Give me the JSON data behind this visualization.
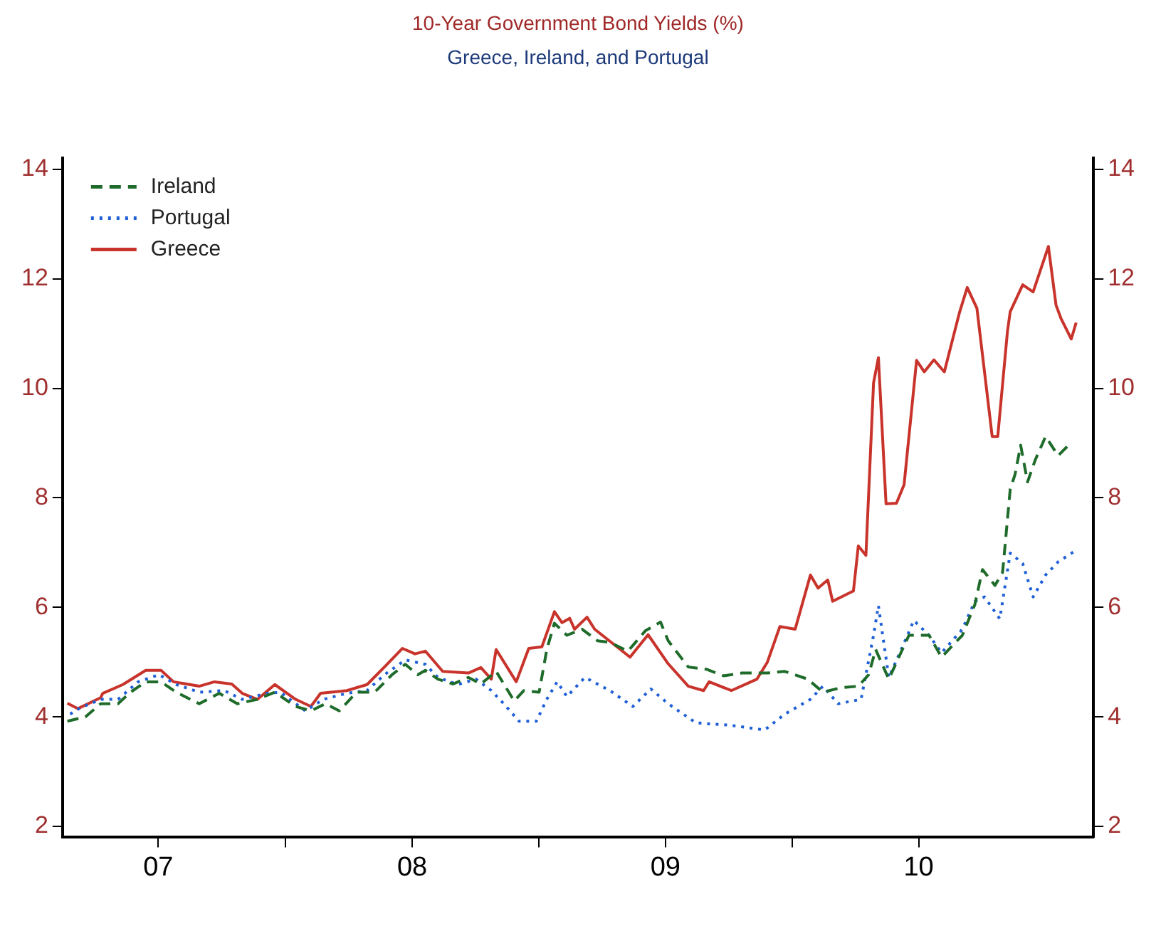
{
  "chart_data": {
    "type": "line",
    "title": "10-Year Government Bond Yields (%)",
    "subtitle": "Greece, Ireland, and Portugal",
    "xlim": [
      "2007-02-14",
      "2011-03-11"
    ],
    "xticks": [
      {
        "value": "2007-07-02",
        "label": "07"
      },
      {
        "value": "2008-01-01",
        "label": null
      },
      {
        "value": "2008-07-02",
        "label": "08"
      },
      {
        "value": "2009-01-01",
        "label": null
      },
      {
        "value": "2009-07-02",
        "label": "09"
      },
      {
        "value": "2010-01-01",
        "label": null
      },
      {
        "value": "2010-07-02",
        "label": "10"
      }
    ],
    "ylim": [
      1.8,
      14.2
    ],
    "yticks": [
      2,
      4,
      6,
      8,
      10,
      12,
      14
    ],
    "y2lim": [
      1.8,
      14.2
    ],
    "y2ticks": [
      2,
      4,
      6,
      8,
      10,
      12,
      14
    ],
    "grid": false,
    "legend": "top left",
    "marker": "none",
    "series": [
      {
        "name": "Ireland",
        "color": "#1e6b2a",
        "line_style": "dashed",
        "x": [
          "2007-02-21",
          "2007-03-19",
          "2007-04-10",
          "2007-05-05",
          "2007-05-23",
          "2007-06-14",
          "2007-07-06",
          "2007-07-28",
          "2007-08-30",
          "2007-09-28",
          "2007-10-24",
          "2007-11-22",
          "2007-12-17",
          "2008-01-16",
          "2008-02-07",
          "2008-02-28",
          "2008-03-19",
          "2008-04-13",
          "2008-05-09",
          "2008-06-03",
          "2008-06-22",
          "2008-07-10",
          "2008-07-21",
          "2008-08-08",
          "2008-08-30",
          "2008-09-21",
          "2008-10-09",
          "2008-10-31",
          "2008-11-26",
          "2008-12-10",
          "2009-01-01",
          "2009-01-12",
          "2009-01-23",
          "2009-02-10",
          "2009-03-04",
          "2009-03-26",
          "2009-04-13",
          "2009-05-09",
          "2009-06-03",
          "2009-06-25",
          "2009-07-06",
          "2009-08-04",
          "2009-08-30",
          "2009-09-24",
          "2009-10-20",
          "2009-11-26",
          "2009-12-21",
          "2010-01-23",
          "2010-02-14",
          "2010-03-11",
          "2010-04-06",
          "2010-04-21",
          "2010-05-01",
          "2010-05-09",
          "2010-05-20",
          "2010-06-18",
          "2010-07-17",
          "2010-08-04",
          "2010-09-03",
          "2010-09-21",
          "2010-10-02",
          "2010-10-20",
          "2010-10-31",
          "2010-11-11",
          "2010-11-18",
          "2010-11-26",
          "2010-12-06",
          "2010-12-17",
          "2011-01-01",
          "2011-01-19",
          "2011-02-03"
        ],
        "values": [
          3.92,
          4.0,
          4.24,
          4.24,
          4.45,
          4.64,
          4.64,
          4.45,
          4.24,
          4.43,
          4.24,
          4.32,
          4.45,
          4.19,
          4.11,
          4.24,
          4.11,
          4.45,
          4.45,
          4.77,
          4.96,
          4.77,
          4.85,
          4.69,
          4.6,
          4.72,
          4.6,
          4.83,
          4.29,
          4.48,
          4.45,
          5.23,
          5.71,
          5.49,
          5.6,
          5.39,
          5.36,
          5.2,
          5.57,
          5.73,
          5.39,
          4.91,
          4.87,
          4.75,
          4.8,
          4.8,
          4.83,
          4.69,
          4.45,
          4.53,
          4.56,
          4.77,
          5.23,
          5.0,
          4.69,
          5.49,
          5.49,
          5.09,
          5.49,
          6.05,
          6.69,
          6.4,
          6.64,
          8.16,
          8.43,
          8.96,
          8.29,
          8.69,
          9.12,
          8.77,
          8.96
        ]
      },
      {
        "name": "Portugal",
        "color": "#1f5fd6",
        "line_style": "dotted",
        "x": [
          "2007-02-25",
          "2007-03-11",
          "2007-04-10",
          "2007-05-05",
          "2007-06-03",
          "2007-07-03",
          "2007-07-28",
          "2007-08-30",
          "2007-10-05",
          "2007-10-31",
          "2007-12-06",
          "2007-12-25",
          "2008-01-30",
          "2008-02-25",
          "2008-03-30",
          "2008-04-28",
          "2008-05-23",
          "2008-06-22",
          "2008-07-21",
          "2008-08-08",
          "2008-09-06",
          "2008-10-02",
          "2008-10-24",
          "2008-11-11",
          "2008-12-03",
          "2008-12-28",
          "2009-01-12",
          "2009-01-27",
          "2009-02-10",
          "2009-03-08",
          "2009-04-13",
          "2009-05-16",
          "2009-06-11",
          "2009-07-06",
          "2009-08-15",
          "2009-10-02",
          "2009-11-22",
          "2009-12-21",
          "2010-01-27",
          "2010-02-14",
          "2010-03-08",
          "2010-04-10",
          "2010-04-28",
          "2010-05-05",
          "2010-05-20",
          "2010-06-07",
          "2010-06-25",
          "2010-07-17",
          "2010-08-04",
          "2010-09-03",
          "2010-09-21",
          "2010-10-05",
          "2010-10-27",
          "2010-11-11",
          "2010-11-29",
          "2010-12-14",
          "2011-01-01",
          "2011-01-19",
          "2011-02-10"
        ],
        "values": [
          4.05,
          4.16,
          4.32,
          4.32,
          4.64,
          4.77,
          4.59,
          4.45,
          4.48,
          4.32,
          4.43,
          4.45,
          4.11,
          4.32,
          4.43,
          4.48,
          4.77,
          5.04,
          4.96,
          4.72,
          4.59,
          4.69,
          4.48,
          4.24,
          3.92,
          3.92,
          4.32,
          4.64,
          4.37,
          4.72,
          4.48,
          4.19,
          4.51,
          4.24,
          3.89,
          3.85,
          3.76,
          4.05,
          4.32,
          4.56,
          4.24,
          4.32,
          5.49,
          6.03,
          4.72,
          5.23,
          5.76,
          5.49,
          5.17,
          5.6,
          6.11,
          6.19,
          5.79,
          6.99,
          6.8,
          6.19,
          6.59,
          6.83,
          7.01
        ]
      },
      {
        "name": "Greece",
        "color": "#c8342c",
        "line_style": "solid",
        "x": [
          "2007-02-21",
          "2007-03-08",
          "2007-04-10",
          "2007-04-13",
          "2007-05-12",
          "2007-06-14",
          "2007-07-06",
          "2007-07-24",
          "2007-08-30",
          "2007-09-21",
          "2007-10-16",
          "2007-10-31",
          "2007-11-22",
          "2007-12-17",
          "2008-01-16",
          "2008-02-07",
          "2008-02-21",
          "2008-03-30",
          "2008-04-28",
          "2008-05-23",
          "2008-06-18",
          "2008-07-06",
          "2008-07-21",
          "2008-08-15",
          "2008-09-21",
          "2008-10-09",
          "2008-10-24",
          "2008-10-31",
          "2008-11-29",
          "2008-12-17",
          "2009-01-05",
          "2009-01-23",
          "2009-02-03",
          "2009-02-14",
          "2009-02-21",
          "2009-03-11",
          "2009-03-22",
          "2009-05-12",
          "2009-06-07",
          "2009-07-06",
          "2009-08-04",
          "2009-08-26",
          "2009-09-03",
          "2009-10-05",
          "2009-11-11",
          "2009-11-26",
          "2009-12-14",
          "2010-01-05",
          "2010-01-27",
          "2010-02-07",
          "2010-02-21",
          "2010-02-28",
          "2010-03-30",
          "2010-04-06",
          "2010-04-17",
          "2010-04-28",
          "2010-05-05",
          "2010-05-16",
          "2010-05-31",
          "2010-06-11",
          "2010-06-29",
          "2010-07-10",
          "2010-07-24",
          "2010-08-08",
          "2010-08-30",
          "2010-09-10",
          "2010-09-24",
          "2010-10-16",
          "2010-10-24",
          "2010-11-07",
          "2010-11-11",
          "2010-11-29",
          "2010-12-14",
          "2011-01-05",
          "2011-01-16",
          "2011-01-23",
          "2011-02-07",
          "2011-02-14"
        ],
        "values": [
          4.25,
          4.15,
          4.35,
          4.43,
          4.59,
          4.85,
          4.85,
          4.64,
          4.56,
          4.64,
          4.6,
          4.43,
          4.32,
          4.59,
          4.32,
          4.19,
          4.43,
          4.48,
          4.59,
          4.91,
          5.25,
          5.15,
          5.2,
          4.83,
          4.8,
          4.9,
          4.69,
          5.23,
          4.64,
          5.25,
          5.28,
          5.92,
          5.72,
          5.8,
          5.6,
          5.82,
          5.6,
          5.09,
          5.5,
          4.97,
          4.56,
          4.48,
          4.64,
          4.48,
          4.69,
          5.0,
          5.65,
          5.6,
          6.59,
          6.35,
          6.5,
          6.11,
          6.3,
          7.12,
          6.95,
          10.1,
          10.56,
          7.89,
          7.9,
          8.24,
          10.51,
          10.3,
          10.52,
          10.3,
          11.39,
          11.84,
          11.46,
          9.12,
          9.12,
          11.04,
          11.4,
          11.89,
          11.76,
          12.59,
          11.52,
          11.28,
          10.9,
          11.2
        ]
      }
    ]
  }
}
